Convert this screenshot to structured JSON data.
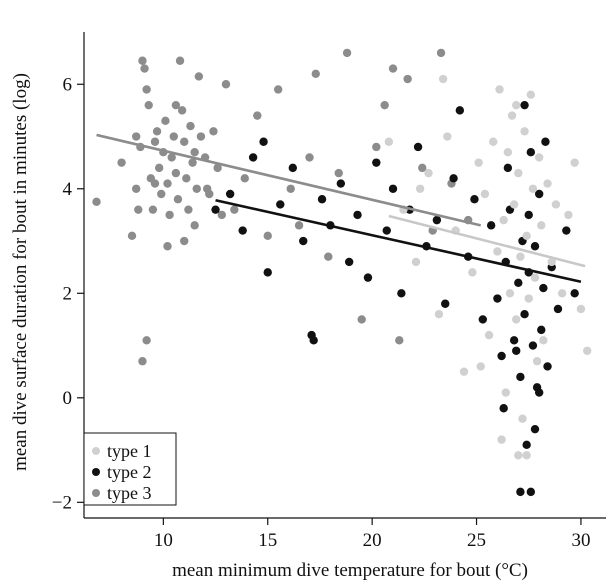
{
  "chart_data": {
    "type": "scatter",
    "title": "",
    "xlabel": "mean minimum dive temperature for bout (°C)",
    "ylabel": "mean dive surface duration for bout in minutes (log)",
    "xlim": [
      6.2,
      31.2
    ],
    "ylim": [
      -2.3,
      7.0
    ],
    "xticks": [
      10,
      15,
      20,
      25,
      30
    ],
    "yticks": [
      -2,
      0,
      2,
      4,
      6
    ],
    "grid": false,
    "legend_position": "bottom-left",
    "colors": {
      "type 1": "#d0d0d0",
      "type 2": "#111111",
      "type 3": "#8c8c8c"
    },
    "series": [
      {
        "name": "type 3",
        "color": "#8c8c8c",
        "points": [
          [
            6.8,
            3.75
          ],
          [
            8.0,
            4.5
          ],
          [
            8.5,
            3.1
          ],
          [
            8.7,
            4.0
          ],
          [
            8.9,
            4.8
          ],
          [
            9.0,
            6.45
          ],
          [
            9.1,
            6.3
          ],
          [
            9.2,
            5.9
          ],
          [
            9.3,
            5.6
          ],
          [
            9.4,
            4.2
          ],
          [
            9.5,
            3.6
          ],
          [
            9.6,
            4.9
          ],
          [
            9.7,
            5.1
          ],
          [
            9.8,
            4.4
          ],
          [
            9.9,
            3.9
          ],
          [
            10.0,
            4.7
          ],
          [
            10.1,
            5.3
          ],
          [
            10.2,
            4.1
          ],
          [
            10.3,
            3.5
          ],
          [
            10.4,
            4.6
          ],
          [
            10.5,
            5.0
          ],
          [
            10.6,
            4.3
          ],
          [
            10.7,
            3.8
          ],
          [
            10.8,
            6.45
          ],
          [
            10.9,
            5.5
          ],
          [
            11.0,
            4.9
          ],
          [
            11.1,
            4.2
          ],
          [
            11.2,
            3.6
          ],
          [
            11.3,
            5.2
          ],
          [
            11.4,
            4.5
          ],
          [
            11.5,
            3.3
          ],
          [
            11.6,
            4.0
          ],
          [
            11.7,
            6.15
          ],
          [
            11.8,
            5.0
          ],
          [
            12.0,
            4.6
          ],
          [
            12.2,
            3.9
          ],
          [
            12.4,
            5.1
          ],
          [
            12.6,
            4.4
          ],
          [
            12.8,
            3.5
          ],
          [
            13.0,
            6.0
          ],
          [
            9.2,
            1.1
          ],
          [
            9.0,
            0.7
          ],
          [
            8.7,
            5.0
          ],
          [
            8.8,
            3.6
          ],
          [
            9.6,
            4.1
          ],
          [
            10.2,
            2.9
          ],
          [
            10.6,
            5.6
          ],
          [
            11.0,
            3.0
          ],
          [
            11.5,
            4.7
          ],
          [
            12.1,
            4.0
          ],
          [
            13.4,
            3.6
          ],
          [
            13.9,
            4.2
          ],
          [
            14.5,
            5.4
          ],
          [
            15.0,
            3.1
          ],
          [
            15.5,
            5.9
          ],
          [
            16.1,
            4.0
          ],
          [
            16.5,
            3.3
          ],
          [
            17.0,
            4.6
          ],
          [
            17.3,
            6.2
          ],
          [
            17.9,
            2.7
          ],
          [
            18.4,
            4.3
          ],
          [
            18.8,
            6.6
          ],
          [
            19.5,
            1.5
          ],
          [
            20.2,
            4.8
          ],
          [
            20.6,
            5.6
          ],
          [
            21.0,
            6.3
          ],
          [
            21.3,
            1.1
          ],
          [
            21.7,
            6.1
          ],
          [
            22.4,
            4.4
          ],
          [
            22.9,
            3.2
          ],
          [
            23.3,
            6.6
          ],
          [
            23.8,
            4.1
          ],
          [
            24.6,
            3.4
          ]
        ]
      },
      {
        "name": "type 2",
        "color": "#111111",
        "points": [
          [
            12.5,
            3.6
          ],
          [
            13.2,
            3.9
          ],
          [
            13.8,
            3.2
          ],
          [
            14.3,
            4.6
          ],
          [
            14.8,
            4.9
          ],
          [
            15.0,
            2.4
          ],
          [
            15.6,
            3.7
          ],
          [
            16.2,
            4.4
          ],
          [
            16.7,
            3.0
          ],
          [
            17.1,
            1.2
          ],
          [
            17.2,
            1.1
          ],
          [
            17.6,
            3.8
          ],
          [
            18.0,
            3.3
          ],
          [
            18.5,
            4.1
          ],
          [
            18.9,
            2.6
          ],
          [
            19.3,
            3.5
          ],
          [
            19.8,
            2.3
          ],
          [
            20.2,
            4.5
          ],
          [
            20.7,
            3.2
          ],
          [
            21.0,
            4.0
          ],
          [
            21.4,
            2.0
          ],
          [
            21.8,
            3.6
          ],
          [
            22.2,
            4.8
          ],
          [
            22.6,
            2.9
          ],
          [
            23.1,
            3.4
          ],
          [
            23.5,
            1.8
          ],
          [
            23.9,
            4.2
          ],
          [
            24.2,
            5.5
          ],
          [
            24.6,
            2.7
          ],
          [
            24.9,
            3.8
          ],
          [
            25.3,
            1.5
          ],
          [
            25.7,
            3.3
          ],
          [
            26.0,
            1.9
          ],
          [
            26.2,
            0.8
          ],
          [
            26.4,
            2.6
          ],
          [
            26.6,
            3.6
          ],
          [
            26.8,
            1.1
          ],
          [
            27.0,
            2.2
          ],
          [
            27.1,
            0.4
          ],
          [
            27.2,
            3.0
          ],
          [
            27.3,
            1.6
          ],
          [
            27.4,
            -0.9
          ],
          [
            27.5,
            2.4
          ],
          [
            27.6,
            4.7
          ],
          [
            27.7,
            1.0
          ],
          [
            27.8,
            2.9
          ],
          [
            27.9,
            0.2
          ],
          [
            28.0,
            3.9
          ],
          [
            28.1,
            1.3
          ],
          [
            28.2,
            2.1
          ],
          [
            28.4,
            0.6
          ],
          [
            28.6,
            2.5
          ],
          [
            28.9,
            1.7
          ],
          [
            29.3,
            3.2
          ],
          [
            29.7,
            2.0
          ],
          [
            27.1,
            -1.8
          ],
          [
            27.6,
            -1.8
          ],
          [
            26.5,
            4.4
          ],
          [
            27.3,
            5.6
          ],
          [
            28.3,
            4.9
          ],
          [
            26.3,
            -0.2
          ],
          [
            27.8,
            -0.6
          ],
          [
            26.9,
            0.9
          ],
          [
            27.5,
            3.5
          ],
          [
            28.0,
            0.1
          ]
        ]
      },
      {
        "name": "type 1",
        "color": "#d0d0d0",
        "points": [
          [
            20.8,
            4.9
          ],
          [
            21.5,
            3.6
          ],
          [
            22.1,
            2.6
          ],
          [
            22.7,
            4.3
          ],
          [
            23.2,
            1.6
          ],
          [
            23.6,
            5.0
          ],
          [
            24.0,
            3.2
          ],
          [
            24.4,
            0.5
          ],
          [
            24.8,
            2.4
          ],
          [
            25.1,
            4.5
          ],
          [
            25.4,
            3.9
          ],
          [
            25.6,
            1.2
          ],
          [
            25.8,
            4.9
          ],
          [
            26.0,
            2.8
          ],
          [
            26.1,
            5.9
          ],
          [
            26.3,
            3.4
          ],
          [
            26.4,
            0.1
          ],
          [
            26.5,
            4.7
          ],
          [
            26.6,
            2.0
          ],
          [
            26.7,
            5.4
          ],
          [
            26.8,
            3.7
          ],
          [
            26.9,
            1.5
          ],
          [
            27.0,
            4.3
          ],
          [
            27.1,
            2.7
          ],
          [
            27.2,
            -0.4
          ],
          [
            27.3,
            5.1
          ],
          [
            27.4,
            3.1
          ],
          [
            27.5,
            1.9
          ],
          [
            27.6,
            5.8
          ],
          [
            27.7,
            4.0
          ],
          [
            27.8,
            2.3
          ],
          [
            27.9,
            0.7
          ],
          [
            28.0,
            4.6
          ],
          [
            28.1,
            3.3
          ],
          [
            28.2,
            1.1
          ],
          [
            28.4,
            4.1
          ],
          [
            28.6,
            2.6
          ],
          [
            28.8,
            3.7
          ],
          [
            29.1,
            2.0
          ],
          [
            29.4,
            3.5
          ],
          [
            29.7,
            4.5
          ],
          [
            30.0,
            1.7
          ],
          [
            30.3,
            0.9
          ],
          [
            27.0,
            -1.1
          ],
          [
            27.4,
            -1.1
          ],
          [
            26.2,
            -0.8
          ],
          [
            25.2,
            0.6
          ],
          [
            23.4,
            6.1
          ],
          [
            22.3,
            4.0
          ],
          [
            26.9,
            5.6
          ]
        ]
      }
    ],
    "lines": [
      {
        "series": "type 3",
        "color": "#8c8c8c",
        "x": [
          6.8,
          25.2
        ],
        "y": [
          5.03,
          3.3
        ]
      },
      {
        "series": "type 1",
        "color": "#c8c8c8",
        "x": [
          20.8,
          30.2
        ],
        "y": [
          3.48,
          2.52
        ]
      },
      {
        "series": "type 2",
        "color": "#111111",
        "x": [
          12.5,
          30.0
        ],
        "y": [
          3.78,
          2.22
        ]
      }
    ],
    "legend": [
      "type 1",
      "type 2",
      "type 3"
    ]
  }
}
